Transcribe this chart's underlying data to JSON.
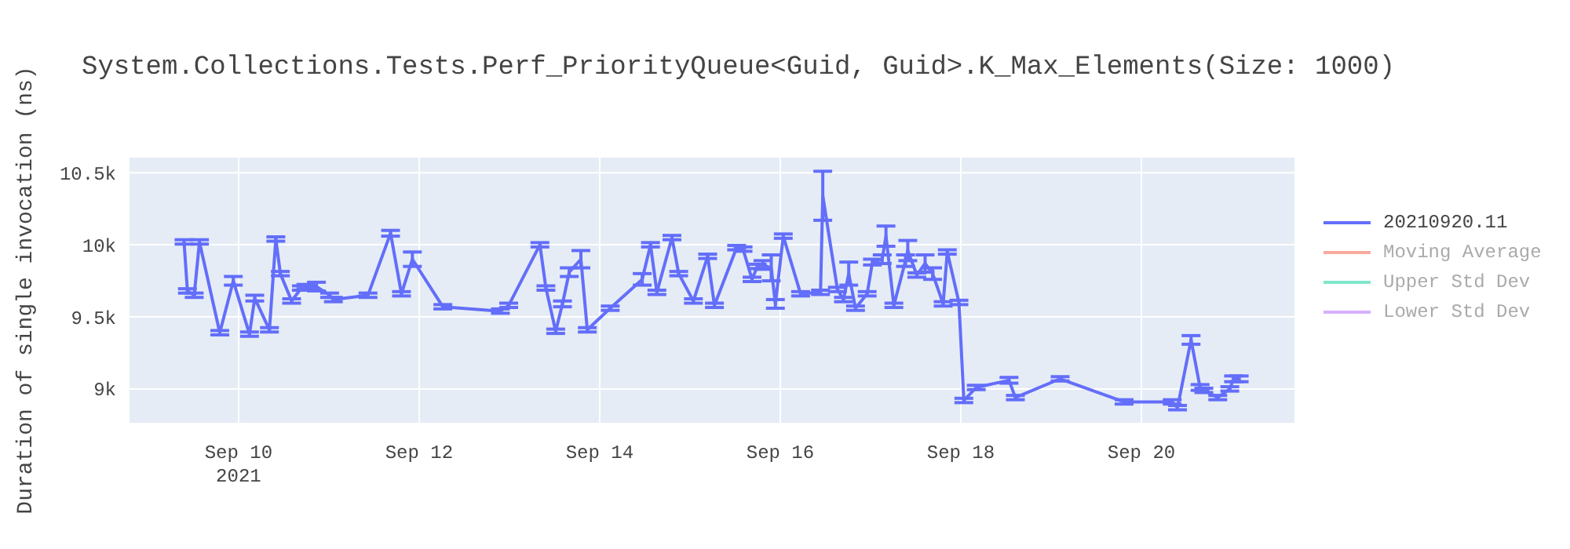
{
  "chart_data": {
    "type": "line",
    "title": "System.Collections.Tests.Perf_PriorityQueue<Guid, Guid>.K_Max_Elements(Size: 1000)",
    "ylabel": "Duration of single invocation (ns)",
    "x": [
      "2021-09-09T09:30",
      "2021-09-09T10:24",
      "2021-09-09T12:12",
      "2021-09-09T13:36",
      "2021-09-09T19:00",
      "2021-09-09T22:36",
      "2021-09-10T02:54",
      "2021-09-10T04:18",
      "2021-09-10T08:12",
      "2021-09-10T09:54",
      "2021-09-10T11:06",
      "2021-09-10T14:06",
      "2021-09-10T16:42",
      "2021-09-10T17:54",
      "2021-09-10T20:42",
      "2021-09-11T00:12",
      "2021-09-11T01:12",
      "2021-09-11T10:24",
      "2021-09-11T16:24",
      "2021-09-11T19:18",
      "2021-09-11T22:12",
      "2021-09-12T06:18",
      "2021-09-12T21:36",
      "2021-09-12T23:48",
      "2021-09-13T08:06",
      "2021-09-13T09:42",
      "2021-09-13T12:18",
      "2021-09-13T14:06",
      "2021-09-13T15:54",
      "2021-09-13T19:00",
      "2021-09-13T20:42",
      "2021-09-14T02:48",
      "2021-09-14T11:18",
      "2021-09-14T13:30",
      "2021-09-14T15:12",
      "2021-09-14T19:12",
      "2021-09-14T21:00",
      "2021-09-15T00:54",
      "2021-09-15T04:42",
      "2021-09-15T06:30",
      "2021-09-15T12:24",
      "2021-09-15T14:06",
      "2021-09-15T16:30",
      "2021-09-15T17:54",
      "2021-09-15T19:24",
      "2021-09-15T21:36",
      "2021-09-15T22:42",
      "2021-09-16T00:48",
      "2021-09-16T05:24",
      "2021-09-16T10:42",
      "2021-09-16T11:18",
      "2021-09-16T15:12",
      "2021-09-16T16:48",
      "2021-09-16T18:12",
      "2021-09-16T20:00",
      "2021-09-16T23:06",
      "2021-09-17T00:30",
      "2021-09-17T03:06",
      "2021-09-17T04:06",
      "2021-09-17T06:12",
      "2021-09-17T09:18",
      "2021-09-17T09:54",
      "2021-09-17T12:18",
      "2021-09-17T14:30",
      "2021-09-17T16:30",
      "2021-09-17T19:18",
      "2021-09-17T20:24",
      "2021-09-17T23:30",
      "2021-09-18T00:48",
      "2021-09-18T04:06",
      "2021-09-18T12:48",
      "2021-09-18T14:30",
      "2021-09-19T02:24",
      "2021-09-19T19:24",
      "2021-09-20T08:12",
      "2021-09-20T09:36",
      "2021-09-20T13:12",
      "2021-09-20T15:36",
      "2021-09-20T16:36",
      "2021-09-20T20:18",
      "2021-09-20T23:30",
      "2021-09-21T00:30",
      "2021-09-21T02:00"
    ],
    "series": [
      {
        "name": "20210920.11",
        "color": "#636efa",
        "values": [
          10020,
          9680,
          9650,
          10020,
          9390,
          9750,
          9380,
          9630,
          9410,
          10040,
          9800,
          9610,
          9700,
          9710,
          9710,
          9650,
          9620,
          9650,
          10080,
          9660,
          9900,
          9570,
          9540,
          9580,
          10000,
          9700,
          9400,
          9590,
          9810,
          9900,
          9410,
          9560,
          9760,
          10000,
          9670,
          10050,
          9800,
          9610,
          9920,
          9580,
          9980,
          9970,
          9760,
          9850,
          9860,
          9840,
          9590,
          10060,
          9660,
          9670,
          10340,
          9690,
          9620,
          9800,
          9560,
          9660,
          9880,
          9900,
          10060,
          9580,
          9890,
          9960,
          9790,
          9870,
          9800,
          9590,
          9950,
          9600,
          8920,
          9010,
          9060,
          8940,
          9070,
          8910,
          8910,
          8870,
          9340,
          9010,
          8990,
          8940,
          9000,
          9070,
          9070
        ],
        "errors": [
          15,
          15,
          15,
          15,
          15,
          30,
          15,
          20,
          15,
          15,
          15,
          15,
          15,
          15,
          30,
          15,
          15,
          15,
          20,
          15,
          50,
          15,
          15,
          15,
          15,
          15,
          15,
          20,
          30,
          60,
          15,
          15,
          40,
          15,
          15,
          15,
          15,
          15,
          15,
          15,
          15,
          15,
          15,
          15,
          30,
          90,
          30,
          15,
          15,
          15,
          170,
          15,
          15,
          80,
          15,
          15,
          20,
          30,
          70,
          15,
          40,
          70,
          15,
          60,
          40,
          15,
          15,
          15,
          15,
          15,
          20,
          15,
          15,
          15,
          15,
          15,
          30,
          20,
          15,
          15,
          15,
          20,
          20
        ]
      },
      {
        "name": "Moving Average",
        "color": "#f7aa9d",
        "values": [
          null,
          null,
          null,
          null,
          null,
          null,
          null,
          null,
          null,
          null,
          null,
          null,
          null,
          null,
          null,
          null,
          null,
          null,
          null,
          null,
          null,
          null,
          null,
          null,
          null,
          null,
          null,
          null,
          null,
          null,
          null,
          null,
          null,
          null,
          null,
          null,
          null,
          null,
          null,
          null,
          null,
          null,
          null,
          null,
          null,
          null,
          null,
          null,
          null,
          null,
          null,
          null,
          null,
          null,
          null,
          null,
          null,
          null,
          null,
          null,
          null,
          null,
          null,
          null,
          null,
          null,
          null,
          null,
          null,
          null,
          null,
          null,
          null,
          null,
          null,
          null,
          null,
          null,
          null,
          null,
          null,
          null,
          null
        ]
      },
      {
        "name": "Upper Std Dev",
        "color": "#7fe5ca",
        "values": [
          null,
          null,
          null,
          null,
          null,
          null,
          null,
          null,
          null,
          null,
          null,
          null,
          null,
          null,
          null,
          null,
          null,
          null,
          null,
          null,
          null,
          null,
          null,
          null,
          null,
          null,
          null,
          null,
          null,
          null,
          null,
          null,
          null,
          null,
          null,
          null,
          null,
          null,
          null,
          null,
          null,
          null,
          null,
          null,
          null,
          null,
          null,
          null,
          null,
          null,
          null,
          null,
          null,
          null,
          null,
          null,
          null,
          null,
          null,
          null,
          null,
          null,
          null,
          null,
          null,
          null,
          null,
          null,
          null,
          null,
          null,
          null,
          null,
          null,
          null,
          null,
          null,
          null,
          null,
          null,
          null,
          null,
          null
        ]
      },
      {
        "name": "Lower Std Dev",
        "color": "#d5b1fc",
        "values": [
          null,
          null,
          null,
          null,
          null,
          null,
          null,
          null,
          null,
          null,
          null,
          null,
          null,
          null,
          null,
          null,
          null,
          null,
          null,
          null,
          null,
          null,
          null,
          null,
          null,
          null,
          null,
          null,
          null,
          null,
          null,
          null,
          null,
          null,
          null,
          null,
          null,
          null,
          null,
          null,
          null,
          null,
          null,
          null,
          null,
          null,
          null,
          null,
          null,
          null,
          null,
          null,
          null,
          null,
          null,
          null,
          null,
          null,
          null,
          null,
          null,
          null,
          null,
          null,
          null,
          null,
          null,
          null,
          null,
          null,
          null,
          null,
          null,
          null,
          null,
          null,
          null,
          null,
          null,
          null,
          null,
          null,
          null
        ]
      }
    ],
    "xlim": [
      "2021-09-08T18:48",
      "2021-09-21T16:54"
    ],
    "xticks": [
      {
        "value": "2021-09-10",
        "label": "Sep 10\n2021"
      },
      {
        "value": "2021-09-12",
        "label": "Sep 12"
      },
      {
        "value": "2021-09-14",
        "label": "Sep 14"
      },
      {
        "value": "2021-09-16",
        "label": "Sep 16"
      },
      {
        "value": "2021-09-18",
        "label": "Sep 18"
      },
      {
        "value": "2021-09-20",
        "label": "Sep 20"
      }
    ],
    "ylim": [
      8760,
      10610
    ],
    "yticks": [
      {
        "value": 9000,
        "label": "9k"
      },
      {
        "value": 9500,
        "label": "9.5k"
      },
      {
        "value": 10000,
        "label": "10k"
      },
      {
        "value": 10500,
        "label": "10.5k"
      }
    ],
    "grid": true,
    "legend": "right",
    "marker": "none",
    "line_style": "solid"
  }
}
